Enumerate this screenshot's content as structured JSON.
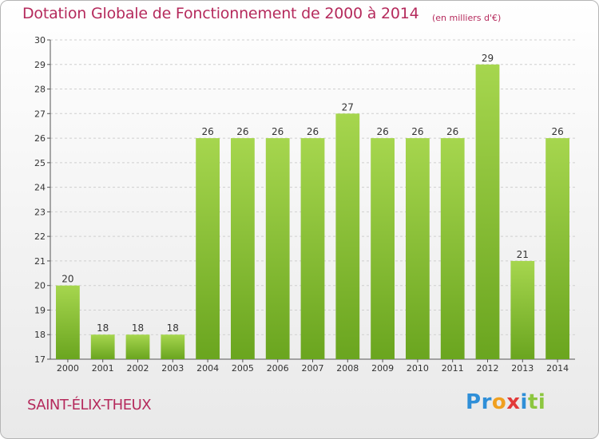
{
  "chart_data": {
    "type": "bar",
    "title": "Dotation Globale de Fonctionnement de 2000 à 2014",
    "unit_note": "(en milliers d'€)",
    "categories": [
      "2000",
      "2001",
      "2002",
      "2003",
      "2004",
      "2005",
      "2006",
      "2007",
      "2008",
      "2009",
      "2010",
      "2011",
      "2012",
      "2013",
      "2014"
    ],
    "values": [
      20,
      18,
      18,
      18,
      26,
      26,
      26,
      26,
      27,
      26,
      26,
      26,
      29,
      21,
      26
    ],
    "ylim": [
      17,
      30
    ],
    "yticks": [
      17,
      18,
      19,
      20,
      21,
      22,
      23,
      24,
      25,
      26,
      27,
      28,
      29,
      30
    ],
    "grid": true,
    "xlabel": "",
    "ylabel": "",
    "bar_color_top": "#a6d64e",
    "bar_color_bottom": "#6aa51f",
    "grid_color": "#cfcfcf",
    "title_color": "#b52a5c"
  },
  "commune": "SAINT-ÉLIX-THEUX",
  "logo": {
    "letters": [
      "P",
      "r",
      "o",
      "x",
      "i",
      "t",
      "i"
    ],
    "colors": [
      "#2f8fd8",
      "#2f8fd8",
      "#f0a020",
      "#e23a3a",
      "#2f8fd8",
      "#8cc63f",
      "#8cc63f"
    ]
  }
}
